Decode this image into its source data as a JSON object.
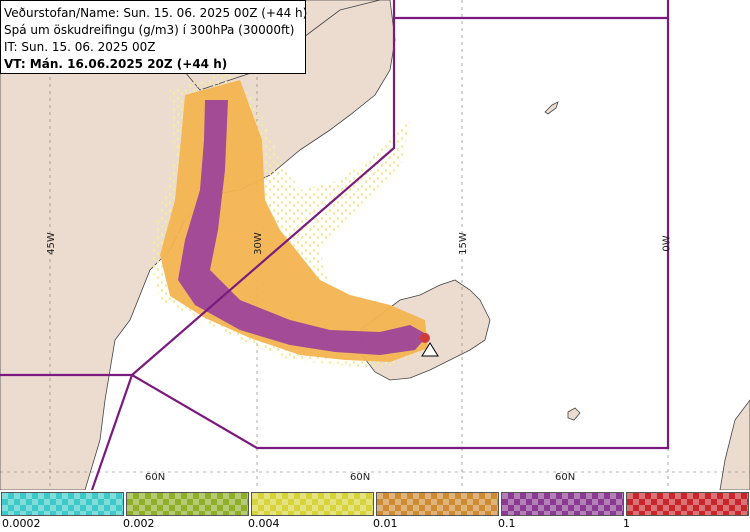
{
  "info": {
    "line1": "Veðurstofan/Name: Sun. 15. 06. 2025 00Z (+44 h)",
    "line2": "Spá um öskudreifingu (g/m3) í 300hPa (30000ft)",
    "line3": "IT: Sun. 15. 06. 2025 00Z",
    "line4": "VT: Mán. 16.06.2025 20Z (+44 h)"
  },
  "map": {
    "longitude_labels": [
      "45W",
      "30W",
      "15W",
      "0W"
    ],
    "latitude_labels": [
      "60N",
      "60N",
      "60N"
    ]
  },
  "scale": {
    "colors": [
      "#3ec9c9",
      "#8fae2a",
      "#d7d43a",
      "#cf8a34",
      "#8a3b91",
      "#c8262c"
    ],
    "labels": [
      "0.0002",
      "0.002",
      "0.004",
      "0.01",
      "0.1",
      "1"
    ]
  }
}
